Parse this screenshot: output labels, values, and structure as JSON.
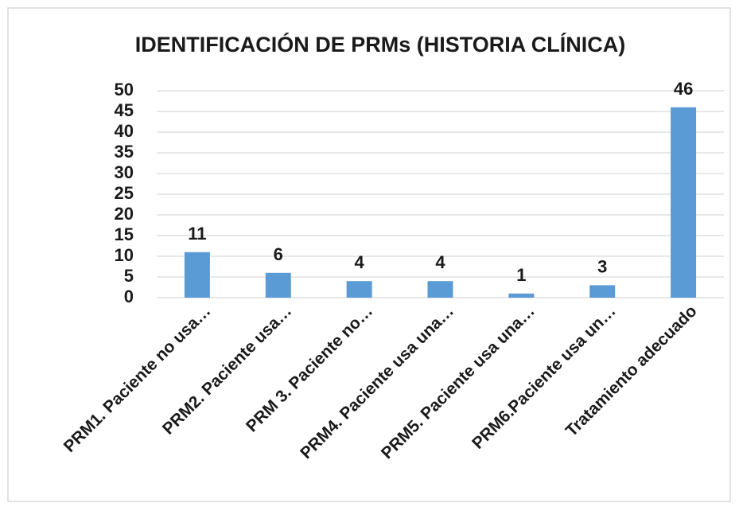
{
  "chart_data": {
    "type": "bar",
    "title": "IDENTIFICACIÓN DE PRMs (HISTORIA CLÍNICA)",
    "categories": [
      "PRM1. Paciente no usa…",
      "PRM2. Paciente usa…",
      "PRM 3. Paciente no…",
      "PRM4. Paciente usa una…",
      "PRM5. Paciente usa una…",
      "PRM6.Paciente usa un…",
      "Tratamiento adecuado"
    ],
    "values": [
      11,
      6,
      4,
      4,
      1,
      3,
      46
    ],
    "color": "#5b9bd5",
    "ylim": [
      0,
      50
    ],
    "yticks": [
      0,
      5,
      10,
      15,
      20,
      25,
      30,
      35,
      40,
      45,
      50
    ],
    "grid": true
  }
}
